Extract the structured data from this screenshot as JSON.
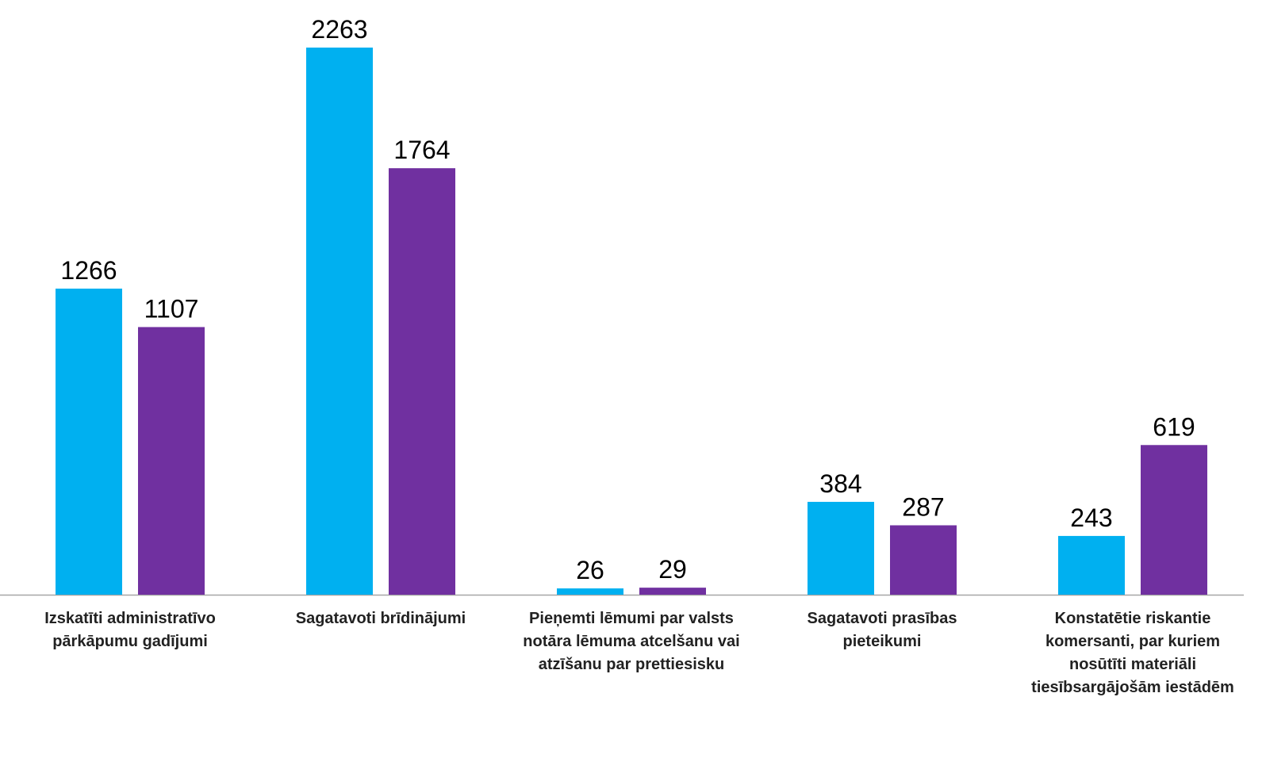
{
  "chart_data": {
    "type": "bar",
    "categories": [
      "Izskatīti administratīvo pārkāpumu gadījumi",
      "Sagatavoti brīdinājumi",
      "Pieņemti lēmumi par valsts notāra lēmuma atcelšanu vai atzīšanu par prettiesisku",
      "Sagatavoti prasības pieteikumi",
      "Konstatētie riskantie komersanti, par kuriem nosūtīti materiāli tiesībsargājošām iestādēm"
    ],
    "series": [
      {
        "color": "#00b0f0",
        "values": [
          1266,
          2263,
          26,
          384,
          243
        ]
      },
      {
        "color": "#7030a0",
        "values": [
          1107,
          1764,
          29,
          287,
          619
        ]
      }
    ]
  }
}
